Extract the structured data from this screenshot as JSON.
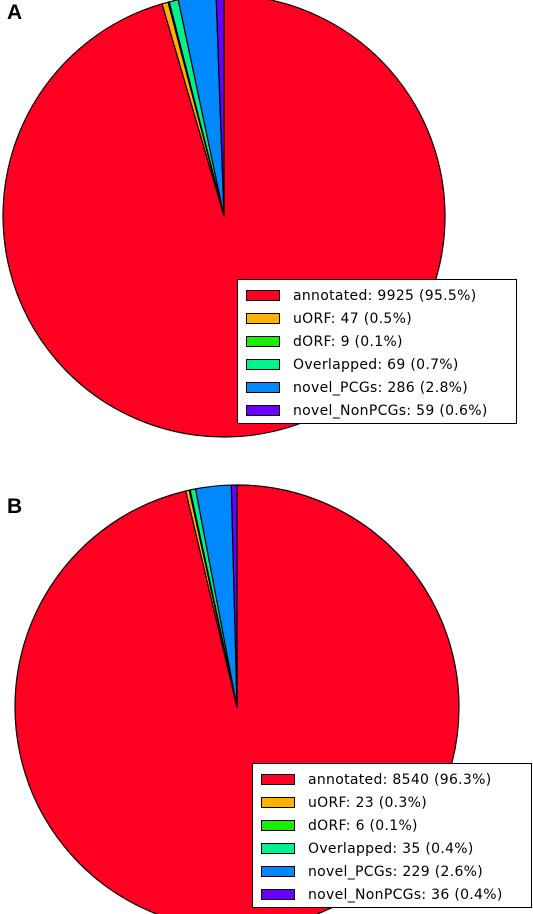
{
  "chart_data": [
    {
      "panel": "A",
      "type": "pie",
      "title": "",
      "slices": [
        {
          "label": "annotated: 9925 (95.5%)",
          "name": "annotated",
          "value": 9925,
          "percent": 95.5,
          "color": "#ff0022"
        },
        {
          "label": "uORF: 47 (0.5%)",
          "name": "uORF",
          "value": 47,
          "percent": 0.5,
          "color": "#ffb000"
        },
        {
          "label": "dORF: 9 (0.1%)",
          "name": "dORF",
          "value": 9,
          "percent": 0.1,
          "color": "#1bed00"
        },
        {
          "label": "Overlapped: 69 (0.7%)",
          "name": "Overlapped",
          "value": 69,
          "percent": 0.7,
          "color": "#00f28d"
        },
        {
          "label": "novel_PCGs: 286 (2.8%)",
          "name": "novel_PCGs",
          "value": 286,
          "percent": 2.8,
          "color": "#0088ff"
        },
        {
          "label": "novel_NonPCGs: 59 (0.6%)",
          "name": "novel_NonPCGs",
          "value": 59,
          "percent": 0.6,
          "color": "#6a00ff"
        }
      ],
      "legend_position": "bottom-right"
    },
    {
      "panel": "B",
      "type": "pie",
      "title": "",
      "slices": [
        {
          "label": "annotated: 8540 (96.3%)",
          "name": "annotated",
          "value": 8540,
          "percent": 96.3,
          "color": "#ff0022"
        },
        {
          "label": "uORF: 23 (0.3%)",
          "name": "uORF",
          "value": 23,
          "percent": 0.3,
          "color": "#ffb000"
        },
        {
          "label": "dORF: 6 (0.1%)",
          "name": "dORF",
          "value": 6,
          "percent": 0.1,
          "color": "#1bed00"
        },
        {
          "label": "Overlapped: 35 (0.4%)",
          "name": "Overlapped",
          "value": 35,
          "percent": 0.4,
          "color": "#00f28d"
        },
        {
          "label": "novel_PCGs: 229 (2.6%)",
          "name": "novel_PCGs",
          "value": 229,
          "percent": 2.6,
          "color": "#0088ff"
        },
        {
          "label": "novel_NonPCGs: 36 (0.4%)",
          "name": "novel_NonPCGs",
          "value": 36,
          "percent": 0.4,
          "color": "#6a00ff"
        }
      ],
      "legend_position": "bottom-right"
    }
  ],
  "panel_labels": [
    "A",
    "B"
  ]
}
